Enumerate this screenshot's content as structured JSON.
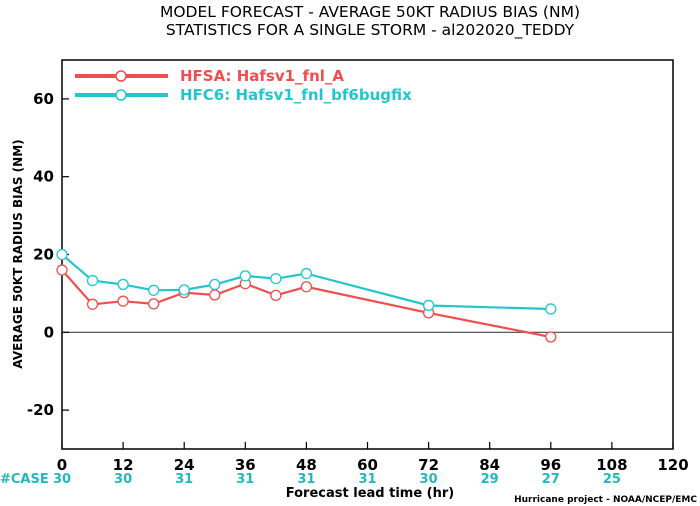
{
  "chart_data": {
    "type": "line",
    "title_line1": "MODEL FORECAST - AVERAGE 50KT RADIUS BIAS (NM)",
    "title_line2": "STATISTICS FOR A SINGLE STORM - al202020_TEDDY",
    "ylabel": "AVERAGE 50KT RADIUS BIAS (NM)",
    "xlabel": "Forecast lead time (hr)",
    "credit": "Hurricane project - NOAA/NCEP/EMC",
    "xlim": [
      0,
      120
    ],
    "ylim": [
      -30,
      70
    ],
    "xticks": [
      0,
      12,
      24,
      36,
      48,
      60,
      72,
      84,
      96,
      108,
      120
    ],
    "xtick_labels": [
      "0",
      "12",
      "24",
      "36",
      "48",
      "60",
      "72",
      "84",
      "96",
      "108",
      "120"
    ],
    "yticks": [
      -20,
      0,
      20,
      40,
      60
    ],
    "ytick_labels": [
      "-20",
      "0",
      "20",
      "40",
      "60"
    ],
    "zero_line": true,
    "series": [
      {
        "name": "HFSA: Hafsv1_fnl_A",
        "color": "#ef4f4f",
        "x": [
          0,
          6,
          12,
          18,
          24,
          30,
          36,
          42,
          48,
          72,
          96
        ],
        "y": [
          16,
          7.2,
          8,
          7.3,
          10.2,
          9.6,
          12.5,
          9.5,
          11.7,
          5,
          -1.2
        ]
      },
      {
        "name": "HFC6: Hafsv1_fnl_bf6bugfix",
        "color": "#22c6cc",
        "x": [
          0,
          6,
          12,
          18,
          24,
          30,
          36,
          42,
          48,
          72,
          96
        ],
        "y": [
          20,
          13.3,
          12.3,
          10.8,
          10.9,
          12.3,
          14.5,
          13.8,
          15.1,
          6.9,
          6
        ]
      }
    ],
    "case_counts": {
      "label": "#CASE",
      "values": [
        {
          "x": 0,
          "text": "30"
        },
        {
          "x": 12,
          "text": "30"
        },
        {
          "x": 24,
          "text": "31"
        },
        {
          "x": 36,
          "text": "31"
        },
        {
          "x": 48,
          "text": "31"
        },
        {
          "x": 60,
          "text": "31"
        },
        {
          "x": 72,
          "text": "30"
        },
        {
          "x": 84,
          "text": "29"
        },
        {
          "x": 96,
          "text": "27"
        },
        {
          "x": 108,
          "text": "25"
        }
      ]
    }
  }
}
